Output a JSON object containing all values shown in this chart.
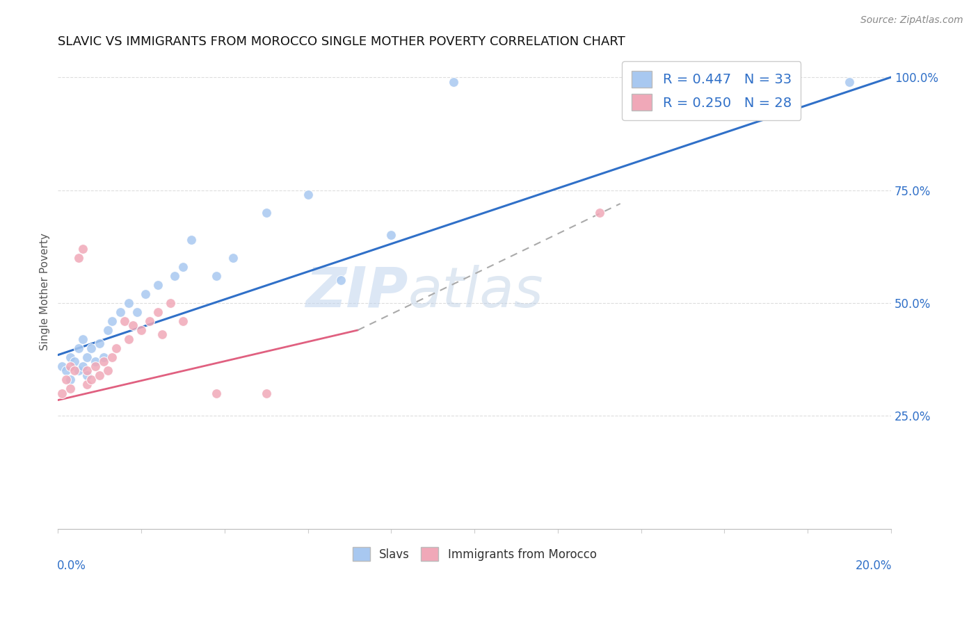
{
  "title": "SLAVIC VS IMMIGRANTS FROM MOROCCO SINGLE MOTHER POVERTY CORRELATION CHART",
  "source": "Source: ZipAtlas.com",
  "ylabel": "Single Mother Poverty",
  "slavs_color": "#a8c8f0",
  "morocco_color": "#f0a8b8",
  "slavs_line_color": "#3070c8",
  "morocco_line_color": "#e06080",
  "legend_slavs_r": "R = 0.447",
  "legend_slavs_n": "N = 33",
  "legend_morocco_r": "R = 0.250",
  "legend_morocco_n": "N = 28",
  "xlim": [
    0.0,
    0.2
  ],
  "ylim": [
    0.0,
    1.05
  ],
  "right_yticks": [
    0.25,
    0.5,
    0.75,
    1.0
  ],
  "right_yticklabels": [
    "25.0%",
    "50.0%",
    "75.0%",
    "100.0%"
  ],
  "slavs_x": [
    0.001,
    0.002,
    0.003,
    0.003,
    0.004,
    0.005,
    0.005,
    0.006,
    0.006,
    0.007,
    0.007,
    0.008,
    0.009,
    0.01,
    0.011,
    0.012,
    0.013,
    0.015,
    0.017,
    0.019,
    0.021,
    0.024,
    0.028,
    0.03,
    0.032,
    0.038,
    0.042,
    0.05,
    0.06,
    0.068,
    0.08,
    0.095,
    0.19
  ],
  "slavs_y": [
    0.36,
    0.35,
    0.38,
    0.33,
    0.37,
    0.4,
    0.35,
    0.36,
    0.42,
    0.38,
    0.34,
    0.4,
    0.37,
    0.41,
    0.38,
    0.44,
    0.46,
    0.48,
    0.5,
    0.48,
    0.52,
    0.54,
    0.56,
    0.58,
    0.64,
    0.56,
    0.6,
    0.7,
    0.74,
    0.55,
    0.65,
    0.99,
    0.99
  ],
  "morocco_x": [
    0.001,
    0.002,
    0.003,
    0.003,
    0.004,
    0.005,
    0.006,
    0.007,
    0.007,
    0.008,
    0.009,
    0.01,
    0.011,
    0.012,
    0.013,
    0.014,
    0.016,
    0.017,
    0.018,
    0.02,
    0.022,
    0.024,
    0.025,
    0.027,
    0.03,
    0.038,
    0.05,
    0.13
  ],
  "morocco_y": [
    0.3,
    0.33,
    0.31,
    0.36,
    0.35,
    0.6,
    0.62,
    0.32,
    0.35,
    0.33,
    0.36,
    0.34,
    0.37,
    0.35,
    0.38,
    0.4,
    0.46,
    0.42,
    0.45,
    0.44,
    0.46,
    0.48,
    0.43,
    0.5,
    0.46,
    0.3,
    0.3,
    0.7
  ]
}
